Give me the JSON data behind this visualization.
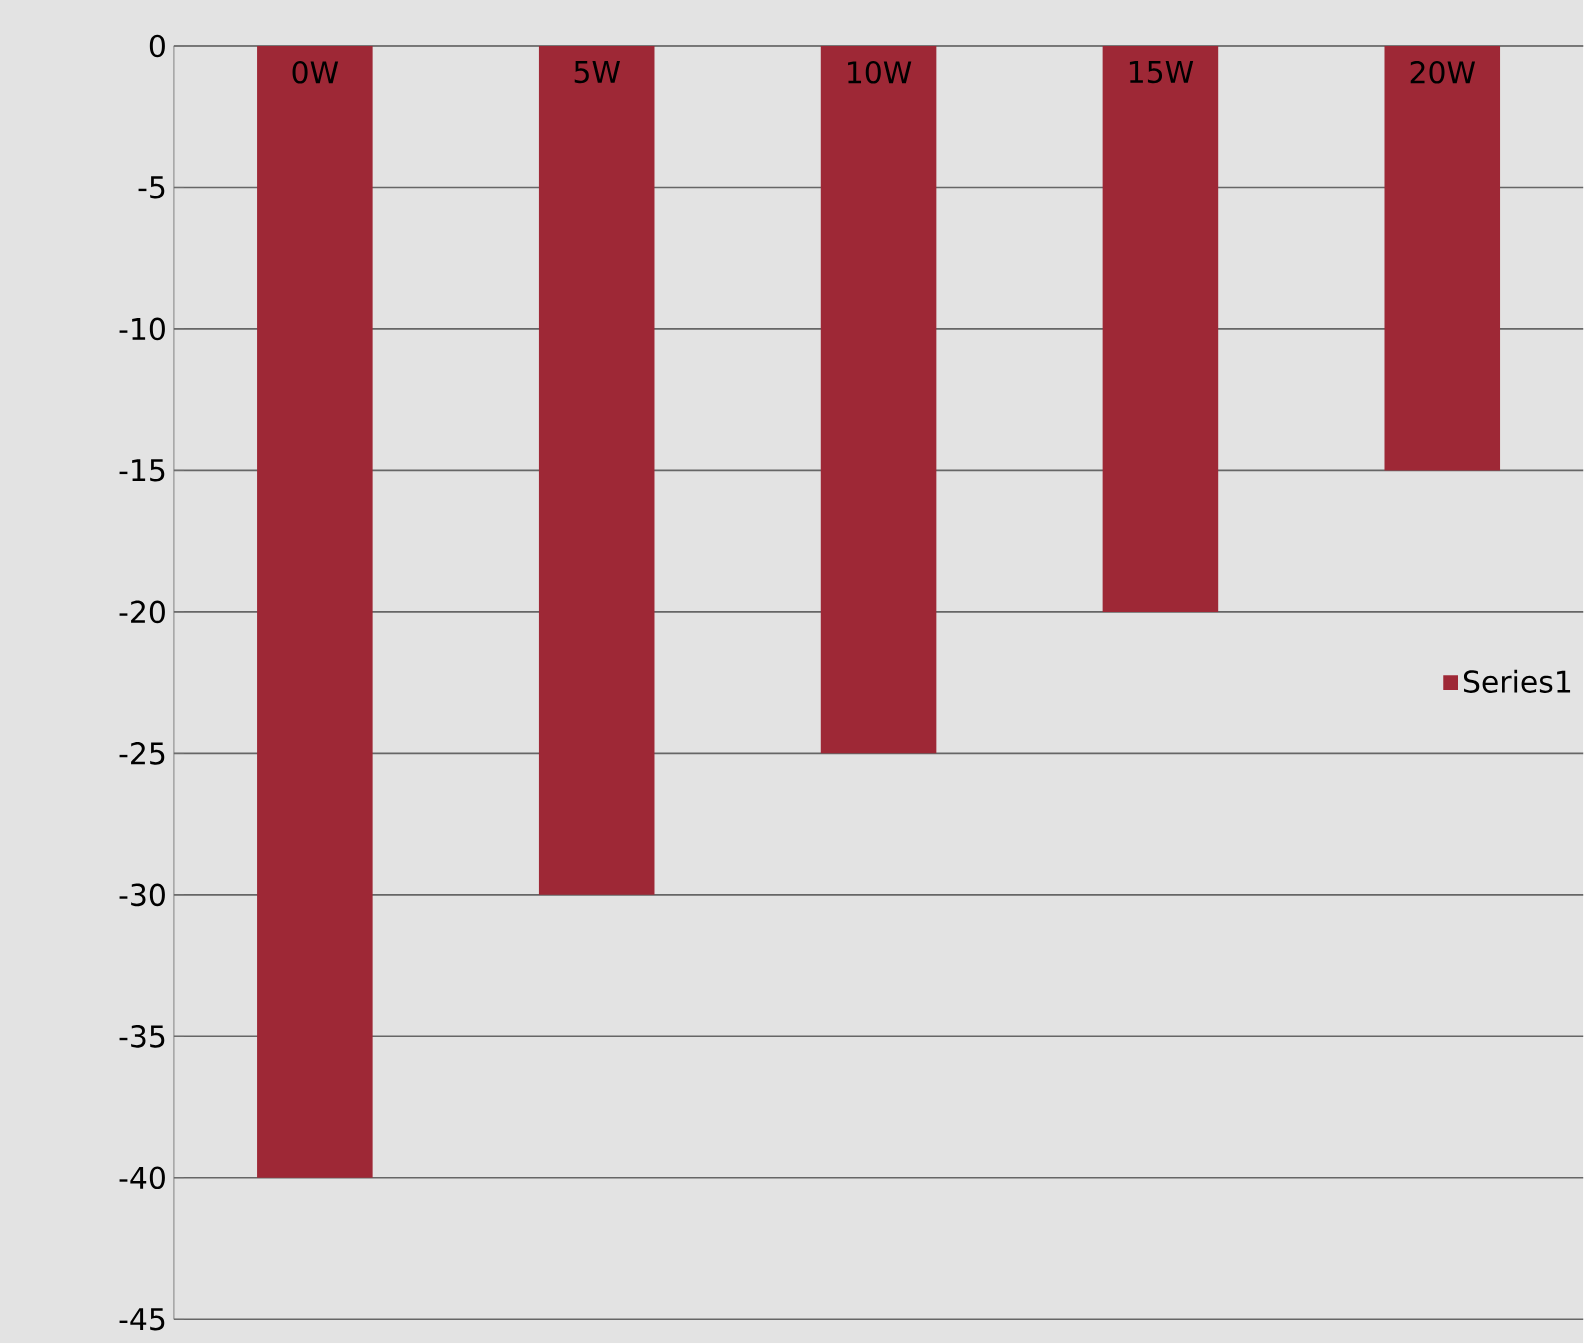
{
  "chart_data": {
    "type": "bar",
    "categories": [
      "0W",
      "5W",
      "10W",
      "15W",
      "20W"
    ],
    "series": [
      {
        "name": "Series1",
        "color": "#9e2836",
        "values": [
          -40,
          -30,
          -25,
          -20,
          -15
        ]
      }
    ],
    "ylim": [
      -45,
      0
    ],
    "yticks": [
      -45,
      -40,
      -35,
      -30,
      -25,
      -20,
      -15,
      -10,
      -5,
      0
    ],
    "grid": "y",
    "legend": "right"
  }
}
